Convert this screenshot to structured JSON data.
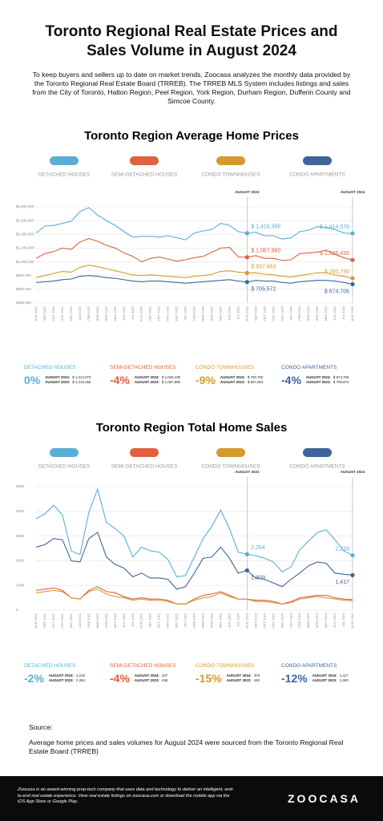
{
  "header": {
    "title": "Toronto Regional Real Estate Prices and Sales Volume in August 2024",
    "intro": "To keep buyers and sellers up to date on market trends, Zoocasa analyzes the monthly data provided by the Toronto Regional Real Estate Board (TRREB). The TRREB MLS System includes listings and sales from the City of Toronto, Halton Region, Peel Region, York Region, Durham Region, Dufferin County and Simcoe County."
  },
  "chart_data": [
    {
      "type": "line",
      "title": "Toronto Region Average Home Prices",
      "categories": [
        "AUG 2021",
        "SEP 2021",
        "OCT 2021",
        "NOV 2021",
        "DEC 2021",
        "JAN 2022",
        "FEB 2022",
        "MAR 2022",
        "APR 2022",
        "MAY 2022",
        "JUN 2022",
        "JUL 2022",
        "AUG 2022",
        "SEP 2022",
        "OCT 2022",
        "NOV 2022",
        "DEC 2022",
        "JAN 2023",
        "FEB 2023",
        "MAR 2023",
        "APR 2023",
        "MAY 2023",
        "JUN 2023",
        "JUL 2023",
        "AUG 2023",
        "SEP 2023",
        "OCT 2023",
        "NOV 2023",
        "DEC 2023",
        "JAN 2024",
        "FEB 2024",
        "MAR 2024",
        "APR 2024",
        "MAY 2024",
        "JUN 2024",
        "JUL 2024",
        "AUG 2024"
      ],
      "ylim": [
        400000,
        1800000
      ],
      "yticks": [
        {
          "value": 400000,
          "label": "$400,000"
        },
        {
          "value": 600000,
          "label": "$600,000"
        },
        {
          "value": 800000,
          "label": "$800,000"
        },
        {
          "value": 1000000,
          "label": "$1,000,000"
        },
        {
          "value": 1200000,
          "label": "$1,200,000"
        },
        {
          "value": 1400000,
          "label": "$1,400,000"
        },
        {
          "value": 1600000,
          "label": "$1,600,000"
        },
        {
          "value": 1800000,
          "label": "$1,800,000"
        }
      ],
      "grid": true,
      "markers": [
        {
          "x": "AUG 2023",
          "label": "AUGUST 2023"
        },
        {
          "x": "AUG 2024",
          "label": "AUGUST 2024"
        }
      ],
      "series": [
        {
          "name": "DETACHED HOUSES",
          "color": "#5aaed6",
          "values": [
            1420000,
            1520000,
            1530000,
            1560000,
            1590000,
            1730000,
            1790000,
            1680000,
            1600000,
            1530000,
            1440000,
            1360000,
            1370000,
            1370000,
            1360000,
            1380000,
            1350000,
            1320000,
            1420000,
            1450000,
            1470000,
            1560000,
            1530000,
            1440000,
            1416366,
            1430000,
            1380000,
            1380000,
            1330000,
            1350000,
            1440000,
            1460000,
            1510000,
            1500000,
            1470000,
            1420000,
            1414070
          ],
          "value_labels": [
            null,
            null,
            null,
            null,
            null,
            null,
            null,
            null,
            null,
            null,
            null,
            null,
            null,
            null,
            null,
            null,
            null,
            null,
            null,
            null,
            null,
            null,
            null,
            null,
            "$ 1,416,366",
            null,
            null,
            null,
            null,
            null,
            null,
            null,
            null,
            null,
            null,
            null,
            "$ 1,414,070"
          ]
        },
        {
          "name": "SEMI-DETACHED HOUSES",
          "color": "#e0603f",
          "values": [
            1050000,
            1120000,
            1150000,
            1200000,
            1180000,
            1290000,
            1340000,
            1300000,
            1240000,
            1200000,
            1130000,
            1080000,
            1000000,
            1050000,
            1070000,
            1040000,
            1010000,
            1030000,
            1060000,
            1080000,
            1140000,
            1200000,
            1210000,
            1070000,
            1067980,
            1090000,
            1050000,
            1050000,
            1020000,
            1030000,
            1120000,
            1130000,
            1140000,
            1170000,
            1110000,
            1060000,
            1026435
          ],
          "value_labels": [
            null,
            null,
            null,
            null,
            null,
            null,
            null,
            null,
            null,
            null,
            null,
            null,
            null,
            null,
            null,
            null,
            null,
            null,
            null,
            null,
            null,
            null,
            null,
            null,
            "$ 1,067,980",
            null,
            null,
            null,
            null,
            null,
            null,
            null,
            null,
            null,
            null,
            null,
            "$ 1,026,435"
          ]
        },
        {
          "name": "CONDO TOWNHOUSES",
          "color": "#d39b2e",
          "values": [
            770000,
            800000,
            830000,
            860000,
            850000,
            920000,
            950000,
            930000,
            900000,
            870000,
            840000,
            810000,
            800000,
            810000,
            800000,
            790000,
            780000,
            770000,
            790000,
            800000,
            820000,
            860000,
            870000,
            850000,
            837863,
            840000,
            820000,
            810000,
            790000,
            780000,
            800000,
            820000,
            840000,
            840000,
            810000,
            790000,
            760750
          ],
          "value_labels": [
            null,
            null,
            null,
            null,
            null,
            null,
            null,
            null,
            null,
            null,
            null,
            null,
            null,
            null,
            null,
            null,
            null,
            null,
            null,
            null,
            null,
            null,
            null,
            null,
            "$ 837,863",
            null,
            null,
            null,
            null,
            null,
            null,
            null,
            null,
            null,
            null,
            null,
            "$ 760,750"
          ]
        },
        {
          "name": "CONDO APARTMENTS",
          "color": "#3e6599",
          "values": [
            700000,
            710000,
            720000,
            740000,
            750000,
            790000,
            800000,
            790000,
            770000,
            760000,
            740000,
            720000,
            710000,
            720000,
            720000,
            710000,
            700000,
            690000,
            700000,
            710000,
            720000,
            730000,
            740000,
            720000,
            705572,
            730000,
            720000,
            720000,
            700000,
            690000,
            710000,
            720000,
            730000,
            730000,
            720000,
            700000,
            674706
          ],
          "value_labels": [
            null,
            null,
            null,
            null,
            null,
            null,
            null,
            null,
            null,
            null,
            null,
            null,
            null,
            null,
            null,
            null,
            null,
            null,
            null,
            null,
            null,
            null,
            null,
            null,
            "$ 705,572",
            null,
            null,
            null,
            null,
            null,
            null,
            null,
            null,
            null,
            null,
            null,
            "$ 674,706"
          ]
        }
      ]
    },
    {
      "type": "line",
      "title": "Toronto Region Total Home Sales",
      "categories": [
        "AUG 2021",
        "SEP 2021",
        "OCT 2021",
        "NOV 2021",
        "DEC 2021",
        "JAN 2022",
        "FEB 2022",
        "MAR 2022",
        "APR 2022",
        "MAY 2022",
        "JUN 2022",
        "JUL 2022",
        "AUG 2022",
        "SEP 2022",
        "OCT 2022",
        "NOV 2022",
        "DEC 2022",
        "JAN 2023",
        "FEB 2023",
        "MAR 2023",
        "APR 2023",
        "MAY 2023",
        "JUN 2023",
        "JUL 2023",
        "AUG 2023",
        "SEP 2023",
        "OCT 2023",
        "NOV 2023",
        "DEC 2023",
        "JAN 2024",
        "FEB 2024",
        "MAR 2024",
        "APR 2024",
        "MAY 2024",
        "JUN 2024",
        "JUL 2024",
        "AUG 2024"
      ],
      "ylim": [
        0,
        5000
      ],
      "yticks": [
        0,
        1000,
        2000,
        3000,
        4000,
        5000
      ],
      "grid": true,
      "markers": [
        {
          "x": "AUG 2023",
          "label": "AUGUST 2023"
        },
        {
          "x": "AUG 2024",
          "label": "AUGUST 2024"
        }
      ],
      "series": [
        {
          "name": "DETACHED HOUSES",
          "color": "#5aaed6",
          "values": [
            3700,
            3900,
            4250,
            3850,
            2400,
            2250,
            3950,
            4900,
            3550,
            3300,
            3000,
            2150,
            2550,
            2400,
            2350,
            2050,
            1350,
            1400,
            2150,
            2900,
            3400,
            4050,
            3300,
            2350,
            2264,
            2200,
            2100,
            1950,
            1550,
            1750,
            2450,
            2800,
            3150,
            3250,
            2850,
            2400,
            2218
          ],
          "value_labels": [
            null,
            null,
            null,
            null,
            null,
            null,
            null,
            null,
            null,
            null,
            null,
            null,
            null,
            null,
            null,
            null,
            null,
            null,
            null,
            null,
            null,
            null,
            null,
            null,
            "2,264",
            null,
            null,
            null,
            null,
            null,
            null,
            null,
            null,
            null,
            null,
            null,
            "2,218"
          ]
        },
        {
          "name": "SEMI-DETACHED HOUSES",
          "color": "#e0603f",
          "values": [
            800,
            850,
            900,
            800,
            500,
            450,
            800,
            950,
            750,
            700,
            550,
            450,
            500,
            450,
            450,
            400,
            250,
            250,
            450,
            600,
            650,
            750,
            600,
            450,
            446,
            400,
            400,
            350,
            250,
            350,
            500,
            550,
            600,
            600,
            500,
            450,
            427
          ]
        },
        {
          "name": "CONDO TOWNHOUSES",
          "color": "#d39b2e",
          "values": [
            700,
            750,
            800,
            750,
            500,
            450,
            750,
            850,
            650,
            550,
            500,
            400,
            450,
            400,
            400,
            350,
            250,
            250,
            400,
            500,
            550,
            700,
            550,
            450,
            440,
            350,
            350,
            300,
            250,
            300,
            450,
            500,
            550,
            500,
            450,
            400,
            376
          ]
        },
        {
          "name": "CONDO APARTMENTS",
          "color": "#3e6599",
          "values": [
            2550,
            2650,
            2900,
            2850,
            2000,
            1950,
            2900,
            3150,
            2150,
            1850,
            1700,
            1350,
            1500,
            1300,
            1300,
            1250,
            850,
            950,
            1500,
            2100,
            2150,
            2550,
            2100,
            1500,
            1609,
            1300,
            1250,
            1100,
            950,
            1250,
            1500,
            1800,
            1950,
            1900,
            1500,
            1450,
            1417
          ],
          "value_labels": [
            null,
            null,
            null,
            null,
            null,
            null,
            null,
            null,
            null,
            null,
            null,
            null,
            null,
            null,
            null,
            null,
            null,
            null,
            null,
            null,
            null,
            null,
            null,
            null,
            "1,609",
            null,
            null,
            null,
            null,
            null,
            null,
            null,
            null,
            null,
            null,
            null,
            "1,417"
          ]
        }
      ]
    }
  ],
  "price_summary": [
    {
      "name": "DETACHED HOUSES",
      "change": "0%",
      "rows": [
        [
          "AUGUST 2024:",
          "$ 1,414,070"
        ],
        [
          "AUGUST 2023:",
          "$ 1,416,366"
        ]
      ]
    },
    {
      "name": "SEMI-DETACHED HOUSES",
      "change": "-4%",
      "rows": [
        [
          "AUGUST 2024:",
          "$ 1,026,435"
        ],
        [
          "AUGUST 2023:",
          "$ 1,067,980"
        ]
      ]
    },
    {
      "name": "CONDO TOWNHOUSES",
      "change": "-9%",
      "rows": [
        [
          "AUGUST 2024:",
          "$ 760,750"
        ],
        [
          "AUGUST 2023:",
          "$ 837,863"
        ]
      ]
    },
    {
      "name": "CONDO APARTMENTS",
      "change": "-4%",
      "rows": [
        [
          "AUGUST 2024:",
          "$ 674,706"
        ],
        [
          "AUGUST 2023:",
          "$ 705,572"
        ]
      ]
    }
  ],
  "sales_summary": [
    {
      "name": "DETACHED HOUSES",
      "change": "-2%",
      "rows": [
        [
          "AUGUST 2024:",
          "2,218"
        ],
        [
          "AUGUST 2023:",
          "2,264"
        ]
      ]
    },
    {
      "name": "SEMI-DETACHED HOUSES",
      "change": "-4%",
      "rows": [
        [
          "AUGUST 2024:",
          "427"
        ],
        [
          "AUGUST 2023:",
          "446"
        ]
      ]
    },
    {
      "name": "CONDO TOWNHOUSES",
      "change": "-15%",
      "rows": [
        [
          "AUGUST 2024:",
          "376"
        ],
        [
          "AUGUST 2023:",
          "440"
        ]
      ]
    },
    {
      "name": "CONDO APARTMENTS",
      "change": "-12%",
      "rows": [
        [
          "AUGUST 2024:",
          "1,417"
        ],
        [
          "AUGUST 2023:",
          "1,609"
        ]
      ]
    }
  ],
  "source": {
    "heading": "Source:",
    "text": "Average home prices and sales volumes for August 2024 were sourced from the Toronto Regional Real Estate Board (TRREB)"
  },
  "footer": {
    "text": "Zoocasa is an award-winning prop-tech company that uses data and technology to deliver an intelligent, end-to-end real estate experience. View real estate listings on zoocasa.com or download the mobile app via the iOS App Store or Google Play.",
    "logo": "ZOOCASA"
  }
}
